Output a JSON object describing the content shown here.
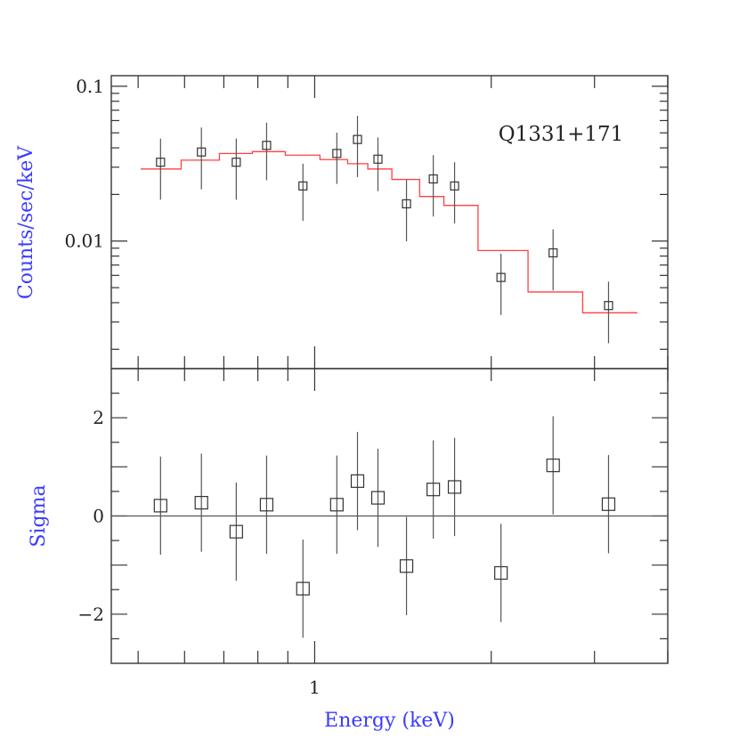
{
  "chart_data": [
    {
      "type": "scatter",
      "panel": "top",
      "ylabel": "Counts/sec/keV",
      "annotation": "Q1331+171",
      "xscale": "log",
      "yscale": "log",
      "xlim": [
        0.45,
        4.0
      ],
      "ylim": [
        0.0015,
        0.117
      ],
      "y_tick_labels": [
        "0.1",
        "0.01"
      ],
      "y_tick_values": [
        0.1,
        0.01
      ],
      "data_color": "#333333",
      "model_color": "#ff4040",
      "points": {
        "x": [
          0.546,
          0.641,
          0.735,
          0.828,
          0.955,
          1.091,
          1.183,
          1.282,
          1.434,
          1.593,
          1.732,
          2.078,
          2.55,
          3.17
        ],
        "y": [
          0.0323,
          0.0376,
          0.0323,
          0.0415,
          0.0227,
          0.0368,
          0.0453,
          0.0338,
          0.0174,
          0.0252,
          0.0227,
          0.00582,
          0.00839,
          0.00383
        ],
        "y_low": [
          0.0185,
          0.0216,
          0.0185,
          0.0247,
          0.0135,
          0.0234,
          0.0259,
          0.021,
          0.00996,
          0.0144,
          0.013,
          0.00333,
          0.00479,
          0.00219
        ],
        "y_high": [
          0.0459,
          0.0541,
          0.0459,
          0.0582,
          0.0316,
          0.0501,
          0.0644,
          0.0467,
          0.0248,
          0.0359,
          0.0323,
          0.00828,
          0.0119,
          0.00547
        ]
      },
      "model": {
        "bin_edges": [
          0.505,
          0.592,
          0.688,
          0.783,
          0.891,
          1.021,
          1.138,
          1.232,
          1.354,
          1.51,
          1.661,
          1.899,
          2.311,
          2.864,
          3.55
        ],
        "values": [
          0.0292,
          0.0333,
          0.0368,
          0.0378,
          0.0359,
          0.0336,
          0.0316,
          0.0292,
          0.025,
          0.0194,
          0.017,
          0.00869,
          0.00469,
          0.00344
        ]
      }
    },
    {
      "type": "scatter",
      "panel": "bottom",
      "ylabel": "Sigma",
      "xlabel": "Energy (keV)",
      "xscale": "log",
      "xlim": [
        0.45,
        4.0
      ],
      "ylim": [
        -3.0,
        3.0
      ],
      "x_tick_labels": [
        "1"
      ],
      "x_tick_values": [
        1
      ],
      "y_tick_labels": [
        "2",
        "0",
        "−2"
      ],
      "y_tick_values": [
        2,
        0,
        -2
      ],
      "zero_line": true,
      "points": {
        "x": [
          0.546,
          0.641,
          0.735,
          0.828,
          0.955,
          1.091,
          1.183,
          1.282,
          1.434,
          1.593,
          1.732,
          2.078,
          2.55,
          3.17
        ],
        "y": [
          0.21,
          0.27,
          -0.32,
          0.23,
          -1.48,
          0.23,
          0.71,
          0.37,
          -1.02,
          0.54,
          0.59,
          -1.16,
          1.03,
          0.24
        ],
        "err": [
          1,
          1,
          1,
          1,
          1,
          1,
          1,
          1,
          1,
          1,
          1,
          1,
          1,
          1
        ]
      }
    }
  ]
}
